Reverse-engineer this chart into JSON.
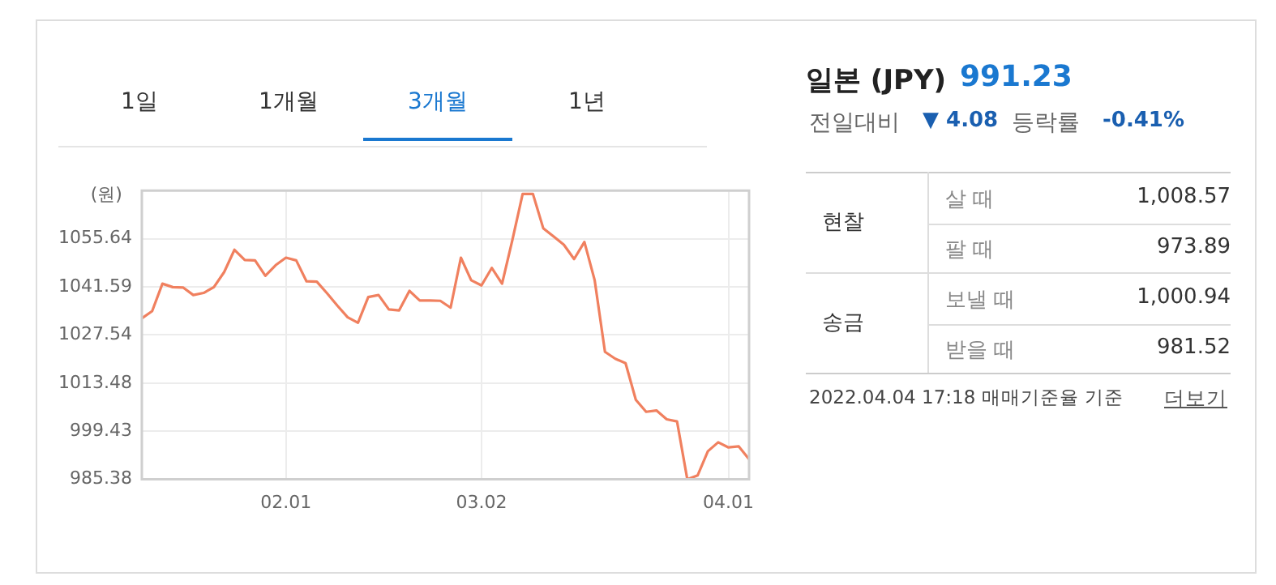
{
  "chart_data": [
    {
      "type": "other",
      "annotations": [
        "1일",
        "1개월",
        "3개월",
        "1년"
      ]
    },
    {
      "type": "line",
      "ylabel": "(원)",
      "color": "#f0805f",
      "grid": true,
      "legend": false,
      "marker": "none",
      "line_style": "solid",
      "categories": [
        null,
        null,
        null,
        null,
        null,
        null,
        null,
        null,
        null,
        null,
        null,
        null,
        null,
        null,
        "02.01",
        null,
        null,
        null,
        null,
        null,
        null,
        null,
        null,
        null,
        null,
        null,
        null,
        null,
        null,
        null,
        null,
        null,
        null,
        "03.02",
        null,
        null,
        null,
        null,
        null,
        null,
        null,
        null,
        null,
        null,
        null,
        null,
        null,
        null,
        null,
        null,
        null,
        null,
        null,
        null,
        null,
        null,
        null,
        "04.01",
        null,
        null
      ],
      "values": [
        1032.4,
        1034.5,
        1042.5,
        1041.5,
        1041.4,
        1039.2,
        1039.8,
        1041.5,
        1045.9,
        1052.4,
        1049.4,
        1049.3,
        1044.8,
        1047.9,
        1050.1,
        1049.3,
        1043.2,
        1043.1,
        1039.7,
        1036.1,
        1032.7,
        1031.1,
        1038.6,
        1039.2,
        1035.0,
        1034.7,
        1040.4,
        1037.6,
        1037.6,
        1037.5,
        1035.5,
        1050.1,
        1043.5,
        1042.0,
        1047.1,
        1042.5,
        1055.2,
        1068.7,
        1068.7,
        1058.7,
        1056.3,
        1053.9,
        1049.7,
        1054.7,
        1043.5,
        1022.6,
        1020.6,
        1019.3,
        1008.6,
        1005.1,
        1005.5,
        1002.9,
        1002.3,
        985.38,
        986.5,
        993.6,
        996.2,
        994.7,
        995.0,
        991.23
      ],
      "ylim": [
        985.38,
        1069.69
      ],
      "yticks": [
        985.38,
        999.43,
        1013.48,
        1027.54,
        1041.59,
        1055.64
      ]
    },
    {
      "type": "other",
      "title": "일본 (JPY)",
      "annotations": [
        "991.23",
        "전일대비",
        "▼ 4.08",
        "등락률",
        "-0.41%",
        "현찰",
        "살 때",
        "1,008.57",
        "팔 때",
        "973.89",
        "송금",
        "보낼 때",
        "1,000.94",
        "받을 때",
        "981.52",
        "2022.04.04 17:18 매매기준율 기준",
        "더보기"
      ]
    }
  ]
}
